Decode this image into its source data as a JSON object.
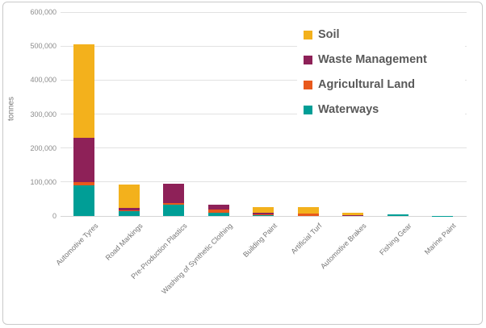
{
  "chart_data": {
    "type": "bar",
    "stacked": true,
    "ylabel": "tonnes",
    "ylim": [
      0,
      600000
    ],
    "ytick_values": [
      0,
      100000,
      200000,
      300000,
      400000,
      500000,
      600000
    ],
    "ytick_labels": [
      "0",
      "100,000",
      "200,000",
      "300,000",
      "400,000",
      "500,000",
      "600,000"
    ],
    "grid": "horizontal",
    "legend_position": "top-right-inside",
    "categories": [
      "Automotive Tyres",
      "Road Markings",
      "Pre-Production Plastics",
      "Washing of Synthetic Clothing",
      "Building Paint",
      "Artificial Turf",
      "Automotive Brakes",
      "Fishing Gear",
      "Marine Paint"
    ],
    "series": [
      {
        "name": "Waterways",
        "color": "#009e96",
        "values": [
          90000,
          14000,
          33000,
          10000,
          3000,
          0,
          0,
          4000,
          1000
        ]
      },
      {
        "name": "Agricultural Land",
        "color": "#e8591c",
        "values": [
          10000,
          2000,
          6000,
          8000,
          2000,
          8000,
          0,
          0,
          0
        ]
      },
      {
        "name": "Waste Management",
        "color": "#8e2158",
        "values": [
          130000,
          9000,
          55000,
          15000,
          5000,
          0,
          3000,
          0,
          0
        ]
      },
      {
        "name": "Soil",
        "color": "#f3b11c",
        "values": [
          275000,
          68000,
          0,
          0,
          16000,
          18000,
          7000,
          0,
          0
        ]
      }
    ],
    "legend_order": [
      "Soil",
      "Waste Management",
      "Agricultural Land",
      "Waterways"
    ]
  }
}
